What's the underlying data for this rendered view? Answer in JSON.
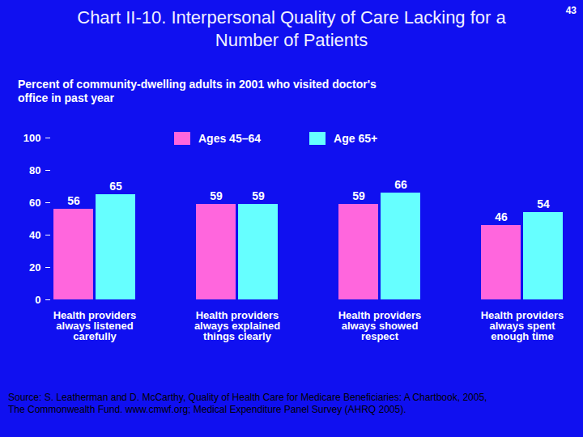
{
  "chart_data": {
    "type": "bar",
    "title": "Chart II-10. Interpersonal Quality of Care Lacking for a Number of Patients",
    "page_number": "43",
    "subtitle": "Percent of community-dwelling adults in 2001 who visited doctor's office in past year",
    "categories": [
      "Health providers always listened carefully",
      "Health providers always explained things clearly",
      "Health providers always showed respect",
      "Health providers always spent enough time"
    ],
    "series": [
      {
        "name": "Ages 45–64",
        "color": "#ff66dd",
        "values": [
          56,
          59,
          59,
          46
        ]
      },
      {
        "name": "Age 65+",
        "color": "#66ffff",
        "values": [
          65,
          59,
          66,
          54
        ]
      }
    ],
    "ylim": [
      0,
      100
    ],
    "yticks": [
      0,
      20,
      40,
      60,
      80,
      100
    ],
    "grid": false,
    "data_labels": true,
    "legend": "top",
    "source": "Source: S. Leatherman and D. McCarthy, Quality of Health Care for Medicare Beneficiaries: A Chartbook, 2005, The Commonwealth Fund. www.cmwf.org; Medical Expenditure Panel Survey (AHRQ 2005)."
  }
}
